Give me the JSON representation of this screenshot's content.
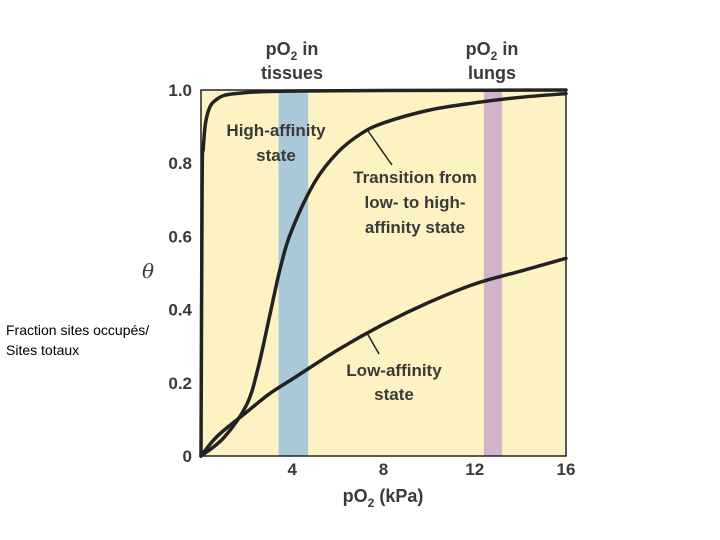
{
  "colors": {
    "plot_background": "#fdf3c2",
    "tissue_band": "#a9c8d8",
    "lung_band": "#d3b3c8",
    "curve": "#222222",
    "text": "#3a3a3a"
  },
  "chart_data": {
    "type": "line",
    "ylabel": "θ",
    "xlabel": {
      "main": "pO",
      "sub": "2",
      "suffix": " (kPa)"
    },
    "xlim": [
      0,
      16
    ],
    "ylim": [
      0,
      1.0
    ],
    "xticks": [
      4,
      8,
      12,
      16
    ],
    "xtick_labels": [
      "4",
      "8",
      "12",
      "16"
    ],
    "yticks": [
      0,
      0.2,
      0.4,
      0.6,
      0.8,
      1.0
    ],
    "ytick_labels": [
      "0",
      "0.2",
      "0.4",
      "0.6",
      "0.8",
      "1.0"
    ],
    "grid": false,
    "bands": [
      {
        "name": "tissues",
        "x_range": [
          3.4,
          4.7
        ],
        "color": "#a9c8d8"
      },
      {
        "name": "lungs",
        "x_range": [
          12.4,
          13.2
        ],
        "color": "#d3b3c8"
      }
    ],
    "series": [
      {
        "name": "High-affinity state",
        "x": [
          0,
          0.05,
          0.1,
          0.2,
          0.4,
          0.7,
          1.0,
          1.5,
          2.5,
          4,
          6,
          10,
          16
        ],
        "y": [
          0,
          0.75,
          0.84,
          0.91,
          0.955,
          0.975,
          0.985,
          0.99,
          0.995,
          0.997,
          0.998,
          0.999,
          1.0
        ]
      },
      {
        "name": "Transition from low- to high-affinity state",
        "x": [
          0,
          1,
          2,
          2.5,
          3,
          3.5,
          4,
          5,
          6,
          7,
          8,
          10,
          12,
          14,
          16
        ],
        "y": [
          0,
          0.05,
          0.14,
          0.24,
          0.38,
          0.52,
          0.62,
          0.75,
          0.83,
          0.88,
          0.91,
          0.945,
          0.965,
          0.98,
          0.99
        ]
      },
      {
        "name": "Low-affinity state",
        "x": [
          0,
          0.5,
          1,
          2,
          3,
          4,
          6,
          8,
          10,
          12,
          14,
          16
        ],
        "y": [
          0,
          0.04,
          0.07,
          0.12,
          0.17,
          0.21,
          0.29,
          0.36,
          0.42,
          0.47,
          0.505,
          0.54
        ]
      }
    ],
    "annotations": {
      "tissues_header": {
        "line1_main": "pO",
        "line1_sub": "2",
        "line1_suffix": " in",
        "line2": "tissues"
      },
      "lungs_header": {
        "line1_main": "pO",
        "line1_sub": "2",
        "line1_suffix": " in",
        "line2": "lungs"
      },
      "high_affinity": [
        "High-affinity",
        "state"
      ],
      "transition": [
        "Transition from",
        "low- to high-",
        "affinity state"
      ],
      "low_affinity": [
        "Low-affinity",
        "state"
      ]
    }
  },
  "side_note": {
    "line1": "Fraction sites occupés/",
    "line2": "Sites totaux"
  }
}
